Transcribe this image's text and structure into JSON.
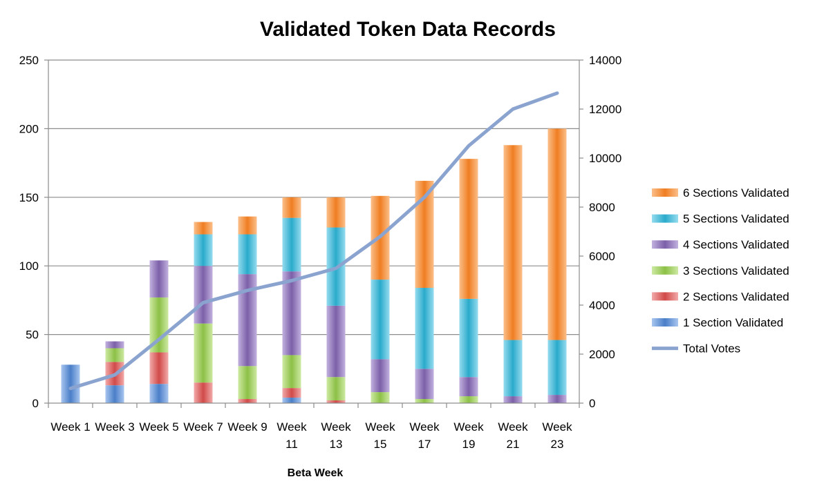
{
  "chart_data": {
    "type": "bar",
    "stacked": true,
    "title": "Validated Token Data Records",
    "xlabel": "Beta Week",
    "ylabel": "",
    "y2label": "",
    "ylim": [
      0,
      250
    ],
    "yticks": [
      0,
      50,
      100,
      150,
      200,
      250
    ],
    "y2lim": [
      0,
      14000
    ],
    "y2ticks": [
      0,
      2000,
      4000,
      6000,
      8000,
      10000,
      12000,
      14000
    ],
    "grid": true,
    "legend_position": "right",
    "categories": [
      "Week 1",
      "Week 3",
      "Week 5",
      "Week 7",
      "Week 9",
      "Week 11",
      "Week 13",
      "Week 15",
      "Week 17",
      "Week 19",
      "Week 21",
      "Week 23"
    ],
    "series": [
      {
        "name": "1 Section Validated",
        "color": "#4a7ec8",
        "light": "#a8c6ef",
        "values": [
          28,
          13,
          14,
          0,
          0,
          4,
          0,
          0,
          0,
          0,
          0,
          0
        ]
      },
      {
        "name": "2 Sections Validated",
        "color": "#d04a48",
        "light": "#f2aaaa",
        "values": [
          0,
          17,
          23,
          15,
          3,
          7,
          2,
          0,
          0,
          0,
          0,
          0
        ]
      },
      {
        "name": "3 Sections Validated",
        "color": "#8cc046",
        "light": "#cde9a3",
        "values": [
          0,
          10,
          40,
          43,
          24,
          24,
          17,
          8,
          3,
          5,
          0,
          0
        ]
      },
      {
        "name": "4 Sections Validated",
        "color": "#7b5fa8",
        "light": "#c2b1df",
        "values": [
          0,
          5,
          27,
          42,
          67,
          61,
          52,
          24,
          22,
          14,
          5,
          6
        ]
      },
      {
        "name": "5 Sections Validated",
        "color": "#2aaacb",
        "light": "#95dcef",
        "values": [
          0,
          0,
          0,
          23,
          29,
          39,
          57,
          58,
          59,
          57,
          41,
          40
        ]
      },
      {
        "name": "6 Sections Validated",
        "color": "#f07e22",
        "light": "#fbbf8a",
        "values": [
          0,
          0,
          0,
          9,
          13,
          15,
          22,
          61,
          78,
          102,
          142,
          154
        ]
      }
    ],
    "line_series": {
      "name": "Total Votes",
      "axis": "right",
      "color": "#8aa3cf",
      "values": [
        600,
        1150,
        2600,
        4100,
        4600,
        5000,
        5500,
        6800,
        8400,
        10500,
        12000,
        12650
      ]
    }
  }
}
